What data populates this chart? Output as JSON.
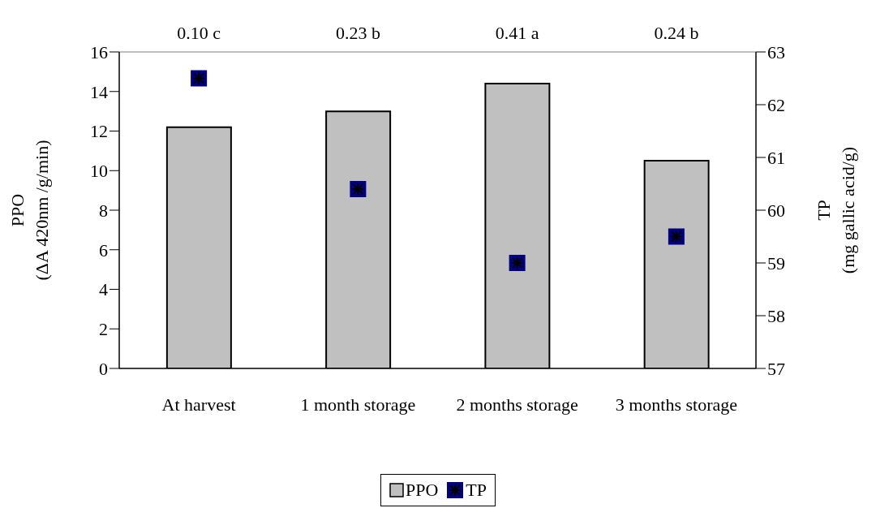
{
  "chart_data": {
    "type": "bar",
    "categories": [
      "At harvest",
      "1 month storage",
      "2 months storage",
      "3 months storage"
    ],
    "series": [
      {
        "name": "PPO",
        "color": "#c0c0c0",
        "values": [
          12.2,
          13.0,
          14.4,
          10.5
        ]
      },
      {
        "name": "TP",
        "type": "scatter",
        "axis": "y2",
        "color": "#000080",
        "marker": "square",
        "values": [
          62.5,
          60.4,
          59.0,
          59.5
        ]
      }
    ],
    "ylabel": "PPO\n(ΔA 420nm /g/min)",
    "y2label": "TP\n(mg gallic acid/g)",
    "ylim": [
      0,
      16
    ],
    "yticks": [
      0,
      2,
      4,
      6,
      8,
      10,
      12,
      14,
      16
    ],
    "y2lim": [
      57,
      63
    ],
    "y2ticks": [
      57,
      58,
      59,
      60,
      61,
      62,
      63
    ],
    "annotations": [
      "0.10 c",
      "0.23 b",
      "0.41 a",
      "0.24 b"
    ],
    "grid": false,
    "legend": "bottom"
  }
}
